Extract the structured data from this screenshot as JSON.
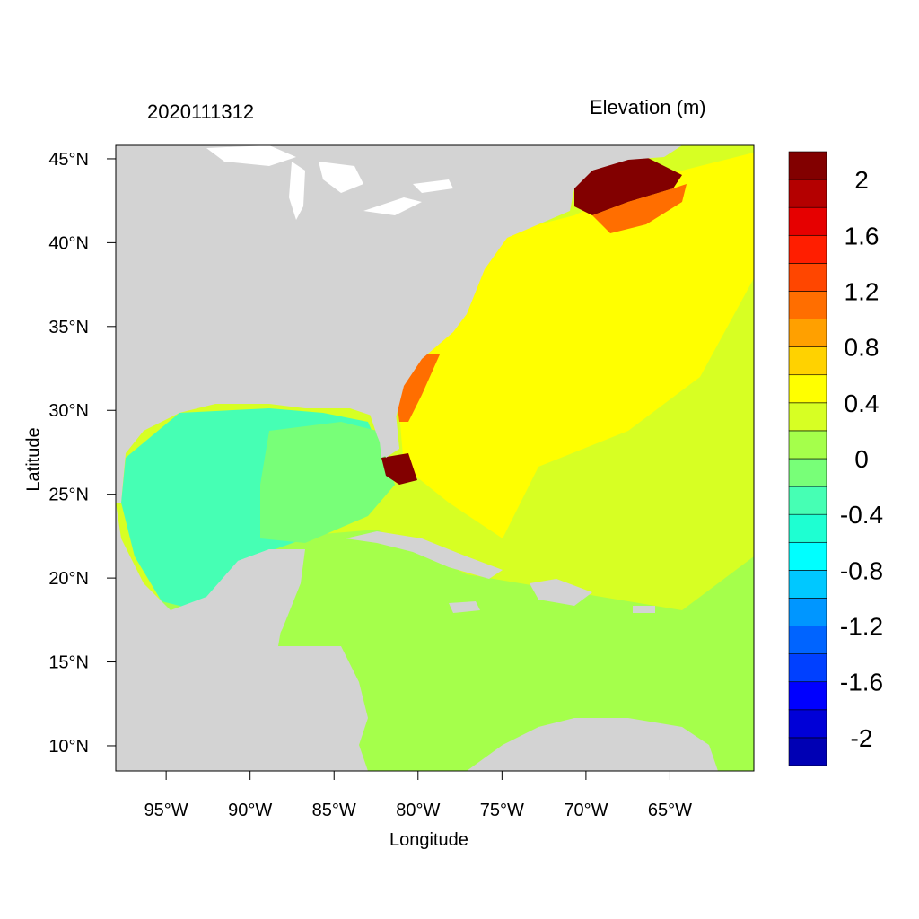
{
  "header": {
    "date_label": "2020111312",
    "variable_label": "Elevation (m)"
  },
  "axes": {
    "x_title": "Longitude",
    "y_title": "Latitude",
    "x_ticks": [
      {
        "lon": -95,
        "label": "95°W"
      },
      {
        "lon": -90,
        "label": "90°W"
      },
      {
        "lon": -85,
        "label": "85°W"
      },
      {
        "lon": -80,
        "label": "80°W"
      },
      {
        "lon": -75,
        "label": "75°W"
      },
      {
        "lon": -70,
        "label": "70°W"
      },
      {
        "lon": -65,
        "label": "65°W"
      }
    ],
    "y_ticks": [
      {
        "lat": 45,
        "label": "45°N"
      },
      {
        "lat": 40,
        "label": "40°N"
      },
      {
        "lat": 35,
        "label": "35°N"
      },
      {
        "lat": 30,
        "label": "30°N"
      },
      {
        "lat": 25,
        "label": "25°N"
      },
      {
        "lat": 20,
        "label": "20°N"
      },
      {
        "lat": 15,
        "label": "15°N"
      },
      {
        "lat": 10,
        "label": "10°N"
      }
    ],
    "lon_range": [
      -98,
      -60
    ],
    "lat_range": [
      8.5,
      45.8
    ]
  },
  "colorbar": {
    "colors": [
      "#0000b4",
      "#0000d7",
      "#0000ff",
      "#0040ff",
      "#0064ff",
      "#0096ff",
      "#00c8ff",
      "#00ffff",
      "#1effd2",
      "#46ffb4",
      "#78ff78",
      "#a5ff4b",
      "#d7ff23",
      "#ffff00",
      "#ffd200",
      "#ffa000",
      "#ff6e00",
      "#ff4600",
      "#ff1e00",
      "#e60000",
      "#b40000",
      "#820000"
    ],
    "labels": [
      {
        "pos": 20,
        "label": "2"
      },
      {
        "pos": 18,
        "label": "1.6"
      },
      {
        "pos": 16,
        "label": "1.2"
      },
      {
        "pos": 14,
        "label": "0.8"
      },
      {
        "pos": 12,
        "label": "0.4"
      },
      {
        "pos": 10,
        "label": "0"
      },
      {
        "pos": 8,
        "label": "-0.4"
      },
      {
        "pos": 6,
        "label": "-0.8"
      },
      {
        "pos": 4,
        "label": "-1.2"
      },
      {
        "pos": 2,
        "label": "-1.6"
      },
      {
        "pos": 0,
        "label": "-2"
      }
    ]
  },
  "map_colors": {
    "land": "#d3d3d3",
    "lake": "#ffffff",
    "gulf": "#46ffb4",
    "caribbean": "#a5ff4b",
    "atlantic": "#ffff00",
    "outer_atlantic": "#d7ff23",
    "surge_high": "#820000",
    "surge_mid": "#ff6e00"
  }
}
